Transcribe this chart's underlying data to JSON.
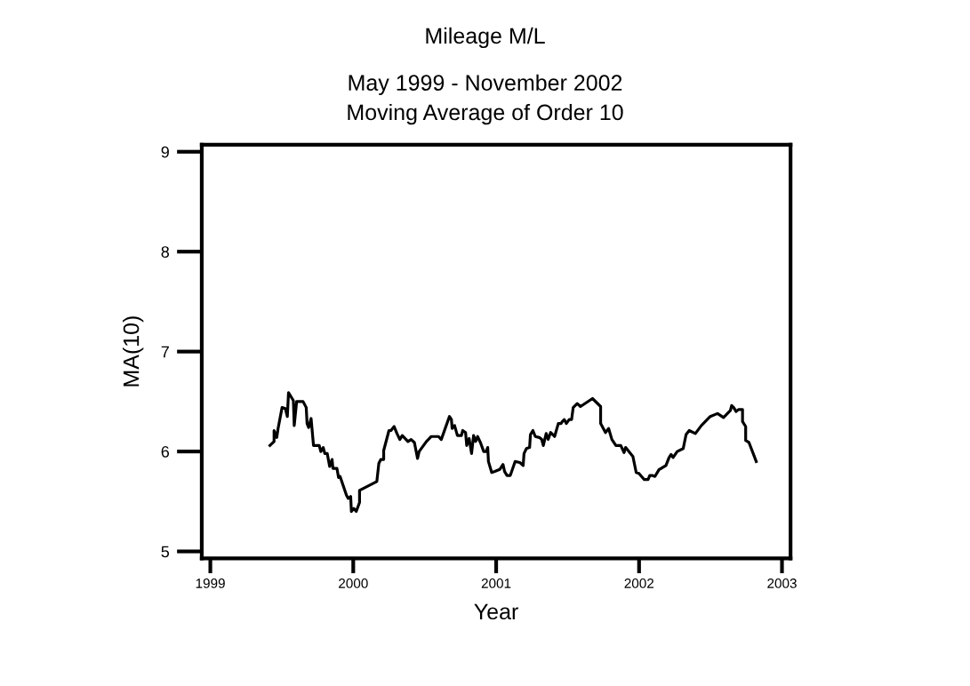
{
  "chart_data": {
    "type": "line",
    "title": "Mileage M/L",
    "subtitle": "May 1999 - November 2002\nMoving Average of Order 10",
    "xlabel": "Year",
    "ylabel": "MA(10)",
    "xlim": [
      1998.94,
      2003.06
    ],
    "xticks": [
      1999,
      2000,
      2001,
      2002,
      2003
    ],
    "ylim": [
      4.93,
      9.07
    ],
    "yticks": [
      5,
      6,
      7,
      8,
      9
    ],
    "grid": false,
    "marker": "none",
    "line_style": "solid",
    "series": [
      {
        "color": "#000000",
        "x": [
          1999.417,
          1999.446,
          1999.446,
          1999.465,
          1999.474,
          1999.502,
          1999.525,
          1999.539,
          1999.547,
          1999.581,
          1999.587,
          1999.604,
          1999.649,
          1999.671,
          1999.677,
          1999.688,
          1999.705,
          1999.722,
          1999.762,
          1999.773,
          1999.79,
          1999.801,
          1999.818,
          1999.835,
          1999.852,
          1999.858,
          1999.886,
          1999.897,
          1999.908,
          1999.953,
          1999.965,
          1999.982,
          1999.987,
          2000.004,
          2000.021,
          2000.044,
          2000.044,
          2000.165,
          2000.179,
          2000.193,
          2000.213,
          2000.213,
          2000.25,
          2000.264,
          2000.286,
          2000.306,
          2000.326,
          2000.343,
          2000.383,
          2000.405,
          2000.428,
          2000.45,
          2000.461,
          2000.512,
          2000.546,
          2000.597,
          2000.616,
          2000.673,
          2000.687,
          2000.692,
          2000.709,
          2000.729,
          2000.757,
          2000.766,
          2000.786,
          2000.794,
          2000.811,
          2000.828,
          2000.842,
          2000.856,
          2000.87,
          2000.89,
          2000.913,
          2000.93,
          2000.941,
          2000.946,
          2000.969,
          2000.991,
          2001.025,
          2001.048,
          2001.059,
          2001.076,
          2001.099,
          2001.133,
          2001.166,
          2001.189,
          2001.195,
          2001.212,
          2001.234,
          2001.24,
          2001.257,
          2001.274,
          2001.302,
          2001.319,
          2001.33,
          2001.35,
          2001.364,
          2001.381,
          2001.409,
          2001.435,
          2001.454,
          2001.463,
          2001.477,
          2001.491,
          2001.511,
          2001.528,
          2001.539,
          2001.567,
          2001.59,
          2001.674,
          2001.731,
          2001.731,
          2001.765,
          2001.787,
          2001.81,
          2001.838,
          2001.872,
          2001.895,
          2001.906,
          2001.957,
          2001.98,
          2001.999,
          2002.035,
          2002.063,
          2002.075,
          2002.092,
          2002.111,
          2002.14,
          2002.154,
          2002.188,
          2002.21,
          2002.224,
          2002.238,
          2002.267,
          2002.309,
          2002.329,
          2002.351,
          2002.394,
          2002.436,
          2002.498,
          2002.549,
          2002.591,
          2002.639,
          2002.648,
          2002.662,
          2002.679,
          2002.696,
          2002.724,
          2002.724,
          2002.746,
          2002.746,
          2002.769,
          2002.82
        ],
        "values": [
          6.06,
          6.1,
          6.21,
          6.14,
          6.23,
          6.44,
          6.43,
          6.35,
          6.59,
          6.51,
          6.26,
          6.5,
          6.5,
          6.44,
          6.28,
          6.24,
          6.33,
          6.06,
          6.06,
          6.0,
          6.04,
          5.98,
          5.98,
          5.85,
          5.92,
          5.83,
          5.83,
          5.74,
          5.75,
          5.56,
          5.53,
          5.55,
          5.4,
          5.43,
          5.4,
          5.49,
          5.61,
          5.7,
          5.88,
          5.92,
          5.92,
          6.01,
          6.21,
          6.21,
          6.25,
          6.18,
          6.12,
          6.16,
          6.1,
          6.12,
          6.09,
          5.93,
          6.0,
          6.1,
          6.15,
          6.15,
          6.12,
          6.35,
          6.32,
          6.23,
          6.26,
          6.16,
          6.16,
          6.21,
          6.19,
          6.06,
          6.13,
          5.98,
          6.16,
          6.1,
          6.15,
          6.09,
          6.0,
          6.0,
          6.04,
          5.9,
          5.79,
          5.8,
          5.82,
          5.87,
          5.8,
          5.76,
          5.76,
          5.9,
          5.89,
          5.86,
          5.98,
          6.03,
          6.04,
          6.17,
          6.21,
          6.15,
          6.14,
          6.12,
          6.06,
          6.18,
          6.12,
          6.19,
          6.15,
          6.28,
          6.28,
          6.3,
          6.32,
          6.28,
          6.32,
          6.32,
          6.44,
          6.48,
          6.45,
          6.53,
          6.45,
          6.28,
          6.19,
          6.23,
          6.12,
          6.06,
          6.06,
          5.99,
          6.04,
          5.95,
          5.79,
          5.78,
          5.72,
          5.72,
          5.76,
          5.76,
          5.75,
          5.82,
          5.83,
          5.86,
          5.94,
          5.97,
          5.94,
          6.0,
          6.03,
          6.17,
          6.21,
          6.18,
          6.26,
          6.35,
          6.38,
          6.34,
          6.41,
          6.46,
          6.44,
          6.4,
          6.42,
          6.42,
          6.3,
          6.25,
          6.11,
          6.09,
          5.9
        ]
      }
    ]
  }
}
